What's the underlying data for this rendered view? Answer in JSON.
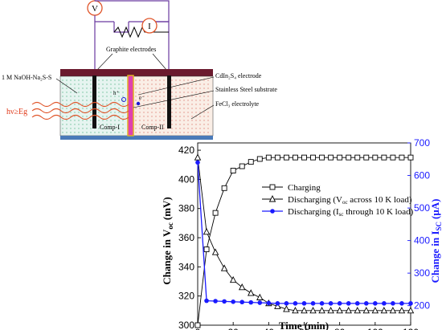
{
  "schematic": {
    "meter_v": "V",
    "meter_i": "I",
    "graphite_label": "Graphite electrodes",
    "naoh_label": "1 M NaOH-Na₂S-S",
    "light_label": "hν≥Eg",
    "cdin_label": "CdIn₂S₄ electrode",
    "steel_label": "Stainless Steel substrate",
    "fecl_label": "FeCl₃ electrolyte",
    "hole_label": "h⁺",
    "electron_label": "e⁻",
    "comp1": "Comp-I",
    "comp2": "Comp-II",
    "colors": {
      "top_bar": "#6b1a2e",
      "left_bath": "#e6f4f0",
      "right_bath": "#faeee6",
      "base": "#4a7ab8",
      "electrode_fill": "#e040b0",
      "electrode_edge": "#e0b020",
      "wire": "#6a3aa0",
      "wave": "#e0552a",
      "light_text": "#e03a1a"
    }
  },
  "chart_data": {
    "type": "line",
    "xlabel": "Time (min)",
    "ylabel": "Change in V",
    "ylabel_sub": "oc",
    "ylabel_unit": "(mV)",
    "ylabel2": "Change in I",
    "ylabel2_sub": "SC",
    "ylabel2_unit": "(μA)",
    "xlim": [
      0,
      120
    ],
    "ylim": [
      300,
      425
    ],
    "y2lim": [
      140,
      700
    ],
    "xticks": [
      0,
      20,
      40,
      60,
      80,
      100,
      120
    ],
    "yticks": [
      300,
      320,
      340,
      360,
      380,
      400,
      420
    ],
    "y2ticks": [
      200,
      300,
      400,
      500,
      600,
      700
    ],
    "legend_position": "right-middle",
    "legend": [
      "Charging",
      "Discharging (V",
      "oc",
      " across 10 K load)",
      "Discharging (I",
      "sc",
      " through 10 K load)"
    ],
    "series": [
      {
        "name": "Charging",
        "axis": "left",
        "marker": "square",
        "color": "#000000",
        "x": [
          0,
          5,
          10,
          15,
          20,
          25,
          30,
          35,
          40,
          45,
          50,
          55,
          60,
          65,
          70,
          75,
          80,
          85,
          90,
          95,
          100,
          105,
          110,
          115,
          120
        ],
        "y": [
          300,
          352,
          377,
          394,
          406,
          409,
          412,
          414,
          415,
          415,
          415,
          415,
          415,
          415,
          415,
          415,
          415,
          415,
          415,
          415,
          415,
          415,
          415,
          415,
          415
        ]
      },
      {
        "name": "Discharging (Voc across 10 K load)",
        "axis": "left",
        "marker": "triangle",
        "color": "#000000",
        "x": [
          0,
          5,
          10,
          15,
          20,
          25,
          30,
          35,
          40,
          45,
          50,
          55,
          60,
          65,
          70,
          75,
          80,
          85,
          90,
          95,
          100,
          105,
          110,
          115,
          120
        ],
        "y": [
          415,
          364,
          350,
          339,
          331,
          326,
          322,
          319,
          315,
          313,
          311,
          310,
          310,
          310,
          310,
          310,
          310,
          310,
          310,
          310,
          310,
          310,
          310,
          310,
          310
        ]
      },
      {
        "name": "Discharging (Isc through 10 K load)",
        "axis": "right",
        "marker": "circle",
        "color": "#1a1aff",
        "x": [
          0,
          5,
          10,
          15,
          20,
          25,
          30,
          35,
          40,
          45,
          50,
          55,
          60,
          65,
          70,
          75,
          80,
          85,
          90,
          95,
          100,
          105,
          110,
          115,
          120
        ],
        "y": [
          640,
          215,
          214,
          213,
          212,
          211,
          210,
          209,
          208,
          207,
          207,
          207,
          207,
          207,
          207,
          207,
          207,
          207,
          207,
          207,
          207,
          207,
          207,
          207,
          207
        ]
      }
    ]
  }
}
